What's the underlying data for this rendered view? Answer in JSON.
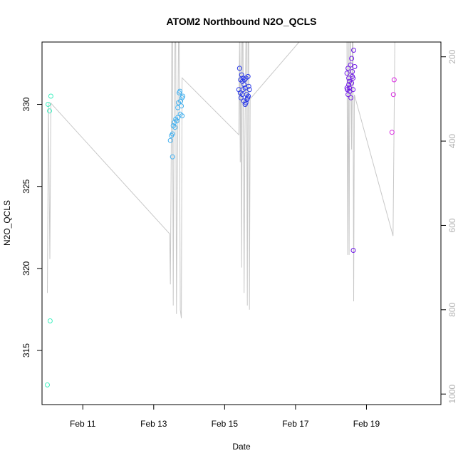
{
  "chart_data": {
    "type": "scatter",
    "title": "ATOM2 Northbound N2O_QCLS",
    "xlabel": "Date",
    "ylabel": "N2O_QCLS",
    "ylabel_right": "",
    "x_unit": "days of February (decimal)",
    "xlim": [
      9.85,
      21.1
    ],
    "ylim": [
      311.7,
      333.8
    ],
    "ylim_right_pressure": [
      1025,
      165
    ],
    "x_ticks": [
      {
        "value": 11,
        "label": "Feb 11"
      },
      {
        "value": 13,
        "label": "Feb 13"
      },
      {
        "value": 15,
        "label": "Feb 15"
      },
      {
        "value": 17,
        "label": "Feb 17"
      },
      {
        "value": 19,
        "label": "Feb 19"
      }
    ],
    "y_ticks": [
      315,
      320,
      325,
      330
    ],
    "y_ticks_right": [
      200,
      400,
      600,
      800,
      1000
    ],
    "grid": false,
    "legend": "none",
    "series": [
      {
        "color": "#40f0c0",
        "points": [
          {
            "x": 10.0,
            "y": 312.9
          },
          {
            "x": 10.02,
            "y": 330.0
          },
          {
            "x": 10.06,
            "y": 329.6
          },
          {
            "x": 10.08,
            "y": 316.8
          },
          {
            "x": 10.1,
            "y": 330.5
          }
        ]
      },
      {
        "color": "#40b0f0",
        "points": [
          {
            "x": 13.47,
            "y": 327.8
          },
          {
            "x": 13.5,
            "y": 328.1
          },
          {
            "x": 13.53,
            "y": 328.2
          },
          {
            "x": 13.55,
            "y": 328.7
          },
          {
            "x": 13.58,
            "y": 328.9
          },
          {
            "x": 13.6,
            "y": 328.6
          },
          {
            "x": 13.53,
            "y": 326.8
          },
          {
            "x": 13.65,
            "y": 329.0
          },
          {
            "x": 13.68,
            "y": 329.2
          },
          {
            "x": 13.7,
            "y": 330.1
          },
          {
            "x": 13.72,
            "y": 330.7
          },
          {
            "x": 13.74,
            "y": 330.8
          },
          {
            "x": 13.76,
            "y": 330.2
          },
          {
            "x": 13.78,
            "y": 329.9
          },
          {
            "x": 13.8,
            "y": 330.4
          },
          {
            "x": 13.82,
            "y": 330.5
          },
          {
            "x": 13.75,
            "y": 329.4
          },
          {
            "x": 13.8,
            "y": 329.3
          },
          {
            "x": 13.68,
            "y": 329.8
          },
          {
            "x": 13.62,
            "y": 329.1
          }
        ]
      },
      {
        "color": "#2838e8",
        "points": [
          {
            "x": 15.42,
            "y": 332.2
          },
          {
            "x": 15.45,
            "y": 331.5
          },
          {
            "x": 15.48,
            "y": 331.8
          },
          {
            "x": 15.5,
            "y": 331.4
          },
          {
            "x": 15.52,
            "y": 330.9
          },
          {
            "x": 15.55,
            "y": 331.2
          },
          {
            "x": 15.58,
            "y": 331.0
          },
          {
            "x": 15.6,
            "y": 331.6
          },
          {
            "x": 15.62,
            "y": 330.6
          },
          {
            "x": 15.65,
            "y": 330.4
          },
          {
            "x": 15.68,
            "y": 331.1
          },
          {
            "x": 15.7,
            "y": 330.9
          },
          {
            "x": 15.4,
            "y": 330.9
          },
          {
            "x": 15.44,
            "y": 330.7
          },
          {
            "x": 15.46,
            "y": 330.4
          },
          {
            "x": 15.5,
            "y": 330.6
          },
          {
            "x": 15.54,
            "y": 330.2
          },
          {
            "x": 15.58,
            "y": 330.0
          },
          {
            "x": 15.63,
            "y": 330.3
          },
          {
            "x": 15.66,
            "y": 331.7
          },
          {
            "x": 15.52,
            "y": 331.6
          },
          {
            "x": 15.56,
            "y": 331.5
          },
          {
            "x": 15.6,
            "y": 330.1
          },
          {
            "x": 15.67,
            "y": 330.5
          }
        ]
      },
      {
        "color": "#7018e8",
        "points": [
          {
            "x": 18.45,
            "y": 331.9
          },
          {
            "x": 18.48,
            "y": 332.2
          },
          {
            "x": 18.5,
            "y": 331.6
          },
          {
            "x": 18.52,
            "y": 331.0
          },
          {
            "x": 18.55,
            "y": 332.4
          },
          {
            "x": 18.58,
            "y": 332.8
          },
          {
            "x": 18.6,
            "y": 332.0
          },
          {
            "x": 18.62,
            "y": 331.6
          },
          {
            "x": 18.64,
            "y": 333.3
          },
          {
            "x": 18.67,
            "y": 332.3
          },
          {
            "x": 18.46,
            "y": 330.9
          },
          {
            "x": 18.48,
            "y": 330.6
          },
          {
            "x": 18.5,
            "y": 331.2
          },
          {
            "x": 18.53,
            "y": 330.8
          },
          {
            "x": 18.56,
            "y": 330.4
          },
          {
            "x": 18.58,
            "y": 331.3
          },
          {
            "x": 18.6,
            "y": 331.7
          },
          {
            "x": 18.62,
            "y": 330.9
          },
          {
            "x": 18.45,
            "y": 331.0
          },
          {
            "x": 18.52,
            "y": 331.4
          },
          {
            "x": 18.63,
            "y": 321.1
          }
        ]
      },
      {
        "color": "#d828e0",
        "points": [
          {
            "x": 19.72,
            "y": 328.3
          },
          {
            "x": 19.76,
            "y": 330.6
          },
          {
            "x": 19.78,
            "y": 331.5
          }
        ]
      }
    ],
    "pressure_trace": {
      "color": "#c8c8c8",
      "points": [
        {
          "x": 10.0,
          "p": 760
        },
        {
          "x": 10.03,
          "p": 310
        },
        {
          "x": 10.07,
          "p": 680
        },
        {
          "x": 10.1,
          "p": 310
        },
        {
          "x": 13.45,
          "p": 620
        },
        {
          "x": 13.47,
          "p": 740
        },
        {
          "x": 13.49,
          "p": 480
        },
        {
          "x": 13.51,
          "p": 165
        },
        {
          "x": 13.53,
          "p": 165
        },
        {
          "x": 13.55,
          "p": 790
        },
        {
          "x": 13.57,
          "p": 380
        },
        {
          "x": 13.6,
          "p": 165
        },
        {
          "x": 13.62,
          "p": 165
        },
        {
          "x": 13.64,
          "p": 810
        },
        {
          "x": 13.67,
          "p": 450
        },
        {
          "x": 13.7,
          "p": 165
        },
        {
          "x": 13.72,
          "p": 165
        },
        {
          "x": 13.75,
          "p": 800
        },
        {
          "x": 13.78,
          "p": 820
        },
        {
          "x": 13.8,
          "p": 250
        },
        {
          "x": 15.4,
          "p": 385
        },
        {
          "x": 15.42,
          "p": 165
        },
        {
          "x": 15.44,
          "p": 450
        },
        {
          "x": 15.46,
          "p": 165
        },
        {
          "x": 15.48,
          "p": 700
        },
        {
          "x": 15.5,
          "p": 165
        },
        {
          "x": 15.52,
          "p": 165
        },
        {
          "x": 15.55,
          "p": 760
        },
        {
          "x": 15.57,
          "p": 420
        },
        {
          "x": 15.6,
          "p": 165
        },
        {
          "x": 15.62,
          "p": 165
        },
        {
          "x": 15.64,
          "p": 790
        },
        {
          "x": 15.66,
          "p": 165
        },
        {
          "x": 15.68,
          "p": 165
        },
        {
          "x": 15.7,
          "p": 800
        },
        {
          "x": 15.72,
          "p": 300
        },
        {
          "x": 17.1,
          "p": 165
        },
        {
          "x": 18.45,
          "p": 165
        },
        {
          "x": 18.47,
          "p": 670
        },
        {
          "x": 18.49,
          "p": 165
        },
        {
          "x": 18.51,
          "p": 670
        },
        {
          "x": 18.53,
          "p": 165
        },
        {
          "x": 18.55,
          "p": 165
        },
        {
          "x": 18.58,
          "p": 420
        },
        {
          "x": 18.6,
          "p": 165
        },
        {
          "x": 18.62,
          "p": 165
        },
        {
          "x": 18.64,
          "p": 780
        },
        {
          "x": 18.66,
          "p": 290
        },
        {
          "x": 19.75,
          "p": 625
        },
        {
          "x": 19.8,
          "p": 165
        }
      ]
    }
  }
}
